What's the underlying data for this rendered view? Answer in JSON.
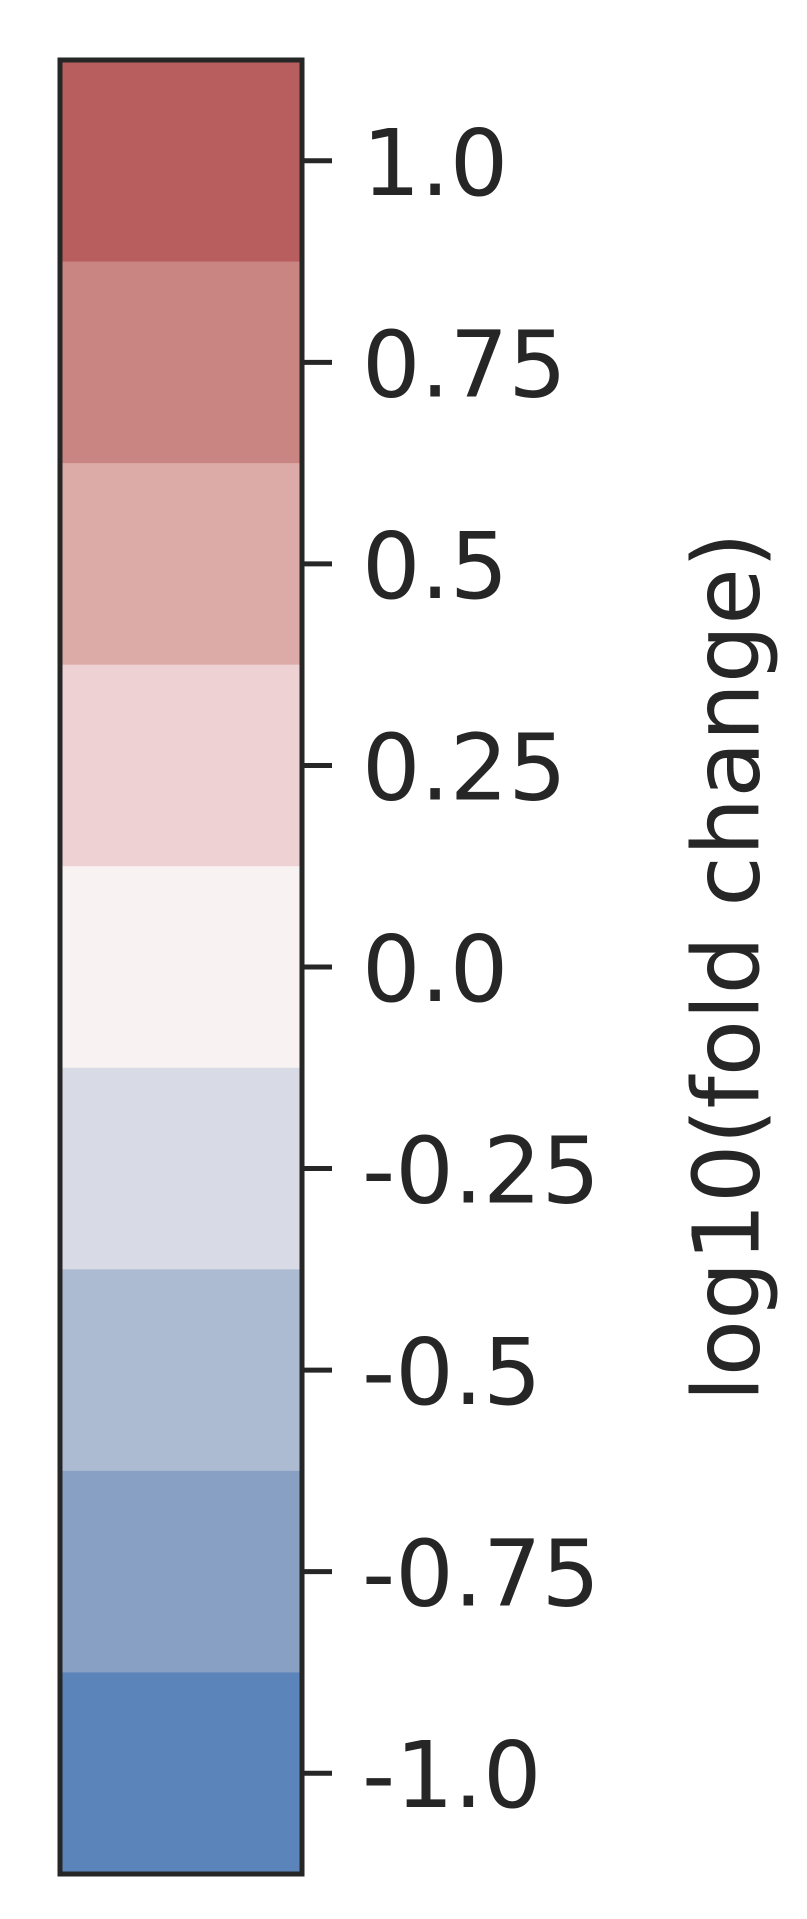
{
  "chart_data": {
    "type": "heatmap",
    "subtype": "colorbar",
    "orientation": "vertical",
    "ylabel": "log10(fold change)",
    "vlim": [
      -1.125,
      1.125
    ],
    "ticks": [
      {
        "value": 1.0,
        "label": "1.0"
      },
      {
        "value": 0.75,
        "label": "0.75"
      },
      {
        "value": 0.5,
        "label": "0.5"
      },
      {
        "value": 0.25,
        "label": "0.25"
      },
      {
        "value": 0.0,
        "label": "0.0"
      },
      {
        "value": -0.25,
        "label": "-0.25"
      },
      {
        "value": -0.5,
        "label": "-0.5"
      },
      {
        "value": -0.75,
        "label": "-0.75"
      },
      {
        "value": -1.0,
        "label": "-1.0"
      }
    ],
    "color_levels": [
      {
        "value": 1.0,
        "color": "#b85e5e"
      },
      {
        "value": 0.75,
        "color": "#c98581"
      },
      {
        "value": 0.5,
        "color": "#dcaaa7"
      },
      {
        "value": 0.25,
        "color": "#eed2d3"
      },
      {
        "value": 0.0,
        "color": "#f8f3f2"
      },
      {
        "value": -0.25,
        "color": "#d8dbe5"
      },
      {
        "value": -0.5,
        "color": "#adbbd2"
      },
      {
        "value": -0.75,
        "color": "#88a0c3"
      },
      {
        "value": -1.0,
        "color": "#5b84bb"
      }
    ],
    "frame_color": "#262626"
  }
}
